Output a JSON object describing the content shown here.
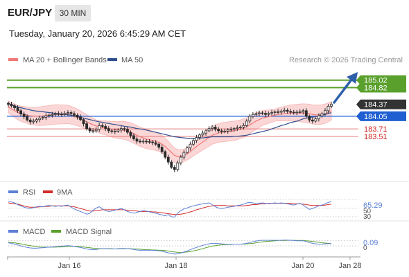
{
  "header": {
    "symbol": "EUR/JPY",
    "timeframe": "30 MIN",
    "datetime": "Tuesday, January 20, 2026 6:45:29 AM CET"
  },
  "legend": {
    "ma20_label": "MA 20 + Bollinger Bands",
    "ma50_label": "MA 50",
    "rsi_label": "RSI",
    "rsi_ma_label": "9MA",
    "macd_label": "MACD",
    "macd_signal_label": "MACD Signal"
  },
  "credit": "Research © 2026 Trading Central",
  "colors": {
    "ma20": "#f07878",
    "ma50": "#2e4e8c",
    "bollinger_fill": "#fbd6d6",
    "resistance": "#5aa02c",
    "pivot": "#1f5fd1",
    "support": "#e06666",
    "last_price": "#333333",
    "rsi": "#5b80d6",
    "rsi_ma": "#d42a2a",
    "macd": "#5b80d6",
    "macd_signal": "#5aa02c",
    "arrow": "#2e5fa8"
  },
  "chart_data": {
    "type": "candlestick",
    "y_range": [
      182.3,
      185.35
    ],
    "levels": [
      {
        "value": 185.02,
        "label": "185.02",
        "kind": "resistance"
      },
      {
        "value": 184.82,
        "label": "184.82",
        "kind": "resistance"
      },
      {
        "value": 184.37,
        "label": "184.37",
        "kind": "last"
      },
      {
        "value": 184.05,
        "label": "184.05",
        "kind": "pivot"
      },
      {
        "value": 183.71,
        "label": "183.71",
        "kind": "support"
      },
      {
        "value": 183.51,
        "label": "183.51",
        "kind": "support"
      }
    ],
    "x_ticks": [
      "Jan 16",
      "Jan 18",
      "Jan 20",
      "Jan 28"
    ],
    "candles_close": [
      184.37,
      184.33,
      184.28,
      184.2,
      184.11,
      184.04,
      183.95,
      183.9,
      183.92,
      183.96,
      184.0,
      184.02,
      184.06,
      184.08,
      184.1,
      184.12,
      184.11,
      184.1,
      184.13,
      184.15,
      184.12,
      184.08,
      184.03,
      183.96,
      183.85,
      183.72,
      183.66,
      183.66,
      183.7,
      183.8,
      183.78,
      183.72,
      183.66,
      183.64,
      183.65,
      183.68,
      183.72,
      183.7,
      183.62,
      183.53,
      183.44,
      183.38,
      183.37,
      183.38,
      183.37,
      183.36,
      183.34,
      183.3,
      183.22,
      183.1,
      182.95,
      182.82,
      182.68,
      182.62,
      182.8,
      182.95,
      183.08,
      183.2,
      183.3,
      183.4,
      183.48,
      183.55,
      183.6,
      183.66,
      183.72,
      183.76,
      183.7,
      183.66,
      183.64,
      183.65,
      183.68,
      183.7,
      183.72,
      183.74,
      183.76,
      183.8,
      183.92,
      184.05,
      184.1,
      184.12,
      184.14,
      184.13,
      184.1,
      184.13,
      184.15,
      184.17,
      184.16,
      184.19,
      184.21,
      184.18,
      184.16,
      184.15,
      184.16,
      184.17,
      184.2,
      184.05,
      183.95,
      183.92,
      183.98,
      184.06,
      184.12,
      184.2,
      184.32,
      184.37
    ],
    "ma20": [
      184.3,
      184.25,
      184.2,
      184.15,
      184.12,
      184.1,
      184.08,
      184.06,
      184.05,
      184.05,
      184.05,
      184.06,
      184.07,
      184.08,
      184.09,
      184.1,
      184.1,
      184.1,
      184.1,
      184.1,
      184.08,
      184.05,
      184.02,
      183.98,
      183.94,
      183.9,
      183.86,
      183.82,
      183.79,
      183.77,
      183.75,
      183.74,
      183.72,
      183.7,
      183.69,
      183.68,
      183.68,
      183.67,
      183.65,
      183.62,
      183.58,
      183.54,
      183.5,
      183.47,
      183.44,
      183.42,
      183.4,
      183.38,
      183.35,
      183.3,
      183.24,
      183.16,
      183.08,
      183.0,
      182.97,
      182.97,
      183.0,
      183.04,
      183.1,
      183.17,
      183.24,
      183.3,
      183.36,
      183.42,
      183.48,
      183.54,
      183.57,
      183.6,
      183.62,
      183.63,
      183.64,
      183.65,
      183.66,
      183.68,
      183.7,
      183.73,
      183.77,
      183.82,
      183.87,
      183.92,
      183.96,
      184.0,
      184.02,
      184.04,
      184.06,
      184.08,
      184.1,
      184.11,
      184.12,
      184.13,
      184.14,
      184.14,
      184.14,
      184.14,
      184.14,
      184.13,
      184.12,
      184.1,
      184.09,
      184.09,
      184.1,
      184.12,
      184.15,
      184.2
    ],
    "ma50": [
      184.4,
      184.36,
      184.33,
      184.3,
      184.28,
      184.26,
      184.24,
      184.22,
      184.2,
      184.19,
      184.18,
      184.17,
      184.16,
      184.15,
      184.14,
      184.13,
      184.12,
      184.11,
      184.1,
      184.09,
      184.08,
      184.06,
      184.04,
      184.02,
      184.0,
      183.98,
      183.96,
      183.94,
      183.92,
      183.9,
      183.89,
      183.87,
      183.86,
      183.84,
      183.83,
      183.81,
      183.8,
      183.78,
      183.77,
      183.76,
      183.74,
      183.72,
      183.71,
      183.7,
      183.68,
      183.66,
      183.64,
      183.62,
      183.6,
      183.58,
      183.56,
      183.54,
      183.52,
      183.5,
      183.49,
      183.48,
      183.47,
      183.46,
      183.46,
      183.46,
      183.46,
      183.47,
      183.47,
      183.48,
      183.49,
      183.5,
      183.5,
      183.5,
      183.5,
      183.5,
      183.5,
      183.5,
      183.51,
      183.51,
      183.52,
      183.53,
      183.54,
      183.56,
      183.58,
      183.6,
      183.62,
      183.64,
      183.66,
      183.68,
      183.71,
      183.74,
      183.77,
      183.8,
      183.82,
      183.85,
      183.88,
      183.9,
      183.92,
      183.95,
      183.98,
      184.0,
      184.02,
      184.03,
      184.04,
      184.06,
      184.08,
      184.1,
      184.12,
      184.15
    ],
    "rsi": {
      "current_label": "65.29",
      "ticks": [
        "50",
        "30"
      ],
      "series": [
        66,
        64,
        62,
        58,
        55,
        52,
        50,
        49,
        51,
        53,
        54,
        53,
        55,
        56,
        55,
        54,
        55,
        54,
        56,
        57,
        52,
        48,
        45,
        42,
        39,
        36,
        38,
        45,
        50,
        53,
        48,
        44,
        42,
        43,
        45,
        47,
        49,
        46,
        42,
        40,
        38,
        40,
        42,
        44,
        43,
        41,
        40,
        38,
        36,
        34,
        32,
        35,
        30,
        29,
        38,
        44,
        48,
        50,
        53,
        55,
        57,
        58,
        60,
        61,
        62,
        58,
        53,
        50,
        49,
        50,
        52,
        53,
        54,
        56,
        57,
        59,
        62,
        63,
        62,
        60,
        61,
        62,
        61,
        60,
        61,
        62,
        61,
        62,
        61,
        60,
        58,
        57,
        59,
        61,
        57,
        52,
        47,
        49,
        52,
        55,
        57,
        60,
        63,
        65
      ],
      "ma_series": [
        62,
        61,
        60,
        59,
        57,
        55,
        53,
        52,
        52,
        52,
        53,
        53,
        54,
        54,
        55,
        55,
        55,
        55,
        55,
        55,
        54,
        53,
        51,
        49,
        47,
        45,
        43,
        43,
        44,
        45,
        46,
        46,
        46,
        46,
        46,
        46,
        46,
        46,
        45,
        45,
        44,
        43,
        42,
        42,
        42,
        42,
        41,
        41,
        40,
        39,
        38,
        37,
        36,
        35,
        35,
        36,
        37,
        39,
        41,
        43,
        46,
        48,
        50,
        52,
        54,
        55,
        56,
        56,
        56,
        56,
        55,
        55,
        55,
        55,
        55,
        55,
        56,
        57,
        58,
        58,
        59,
        60,
        60,
        61,
        61,
        61,
        61,
        61,
        61,
        61,
        61,
        60,
        60,
        60,
        59,
        58,
        57,
        56,
        56,
        56,
        56,
        57,
        58,
        59
      ]
    },
    "macd": {
      "current_label": "0.09",
      "ticks": [
        "0"
      ],
      "series": [
        0.12,
        0.1,
        0.07,
        0.04,
        0.0,
        -0.03,
        -0.06,
        -0.08,
        -0.09,
        -0.09,
        -0.08,
        -0.07,
        -0.06,
        -0.05,
        -0.04,
        -0.03,
        -0.02,
        -0.01,
        0.0,
        0.01,
        0.0,
        -0.02,
        -0.04,
        -0.06,
        -0.09,
        -0.12,
        -0.14,
        -0.15,
        -0.14,
        -0.12,
        -0.11,
        -0.11,
        -0.12,
        -0.12,
        -0.12,
        -0.11,
        -0.1,
        -0.1,
        -0.11,
        -0.12,
        -0.14,
        -0.16,
        -0.17,
        -0.17,
        -0.17,
        -0.17,
        -0.17,
        -0.18,
        -0.19,
        -0.21,
        -0.24,
        -0.27,
        -0.3,
        -0.32,
        -0.31,
        -0.28,
        -0.24,
        -0.2,
        -0.15,
        -0.1,
        -0.06,
        -0.02,
        0.02,
        0.05,
        0.08,
        0.1,
        0.1,
        0.09,
        0.08,
        0.07,
        0.07,
        0.07,
        0.07,
        0.07,
        0.07,
        0.08,
        0.1,
        0.13,
        0.16,
        0.19,
        0.21,
        0.22,
        0.22,
        0.22,
        0.22,
        0.22,
        0.22,
        0.22,
        0.23,
        0.23,
        0.22,
        0.21,
        0.2,
        0.2,
        0.2,
        0.17,
        0.13,
        0.1,
        0.08,
        0.07,
        0.07,
        0.08,
        0.09,
        0.09
      ],
      "signal_series": [
        0.14,
        0.13,
        0.12,
        0.1,
        0.08,
        0.06,
        0.03,
        0.01,
        -0.01,
        -0.03,
        -0.04,
        -0.05,
        -0.05,
        -0.05,
        -0.05,
        -0.05,
        -0.04,
        -0.04,
        -0.03,
        -0.02,
        -0.02,
        -0.02,
        -0.02,
        -0.03,
        -0.04,
        -0.06,
        -0.07,
        -0.09,
        -0.1,
        -0.11,
        -0.11,
        -0.11,
        -0.11,
        -0.11,
        -0.12,
        -0.12,
        -0.11,
        -0.11,
        -0.11,
        -0.11,
        -0.12,
        -0.12,
        -0.13,
        -0.14,
        -0.15,
        -0.15,
        -0.16,
        -0.16,
        -0.17,
        -0.17,
        -0.18,
        -0.2,
        -0.22,
        -0.24,
        -0.25,
        -0.26,
        -0.25,
        -0.24,
        -0.22,
        -0.2,
        -0.17,
        -0.14,
        -0.11,
        -0.07,
        -0.04,
        -0.01,
        0.01,
        0.03,
        0.04,
        0.05,
        0.06,
        0.06,
        0.07,
        0.07,
        0.07,
        0.07,
        0.08,
        0.09,
        0.1,
        0.12,
        0.14,
        0.16,
        0.17,
        0.18,
        0.19,
        0.2,
        0.21,
        0.21,
        0.21,
        0.22,
        0.22,
        0.22,
        0.21,
        0.21,
        0.21,
        0.2,
        0.19,
        0.17,
        0.16,
        0.14,
        0.12,
        0.11,
        0.1,
        0.09
      ]
    }
  }
}
